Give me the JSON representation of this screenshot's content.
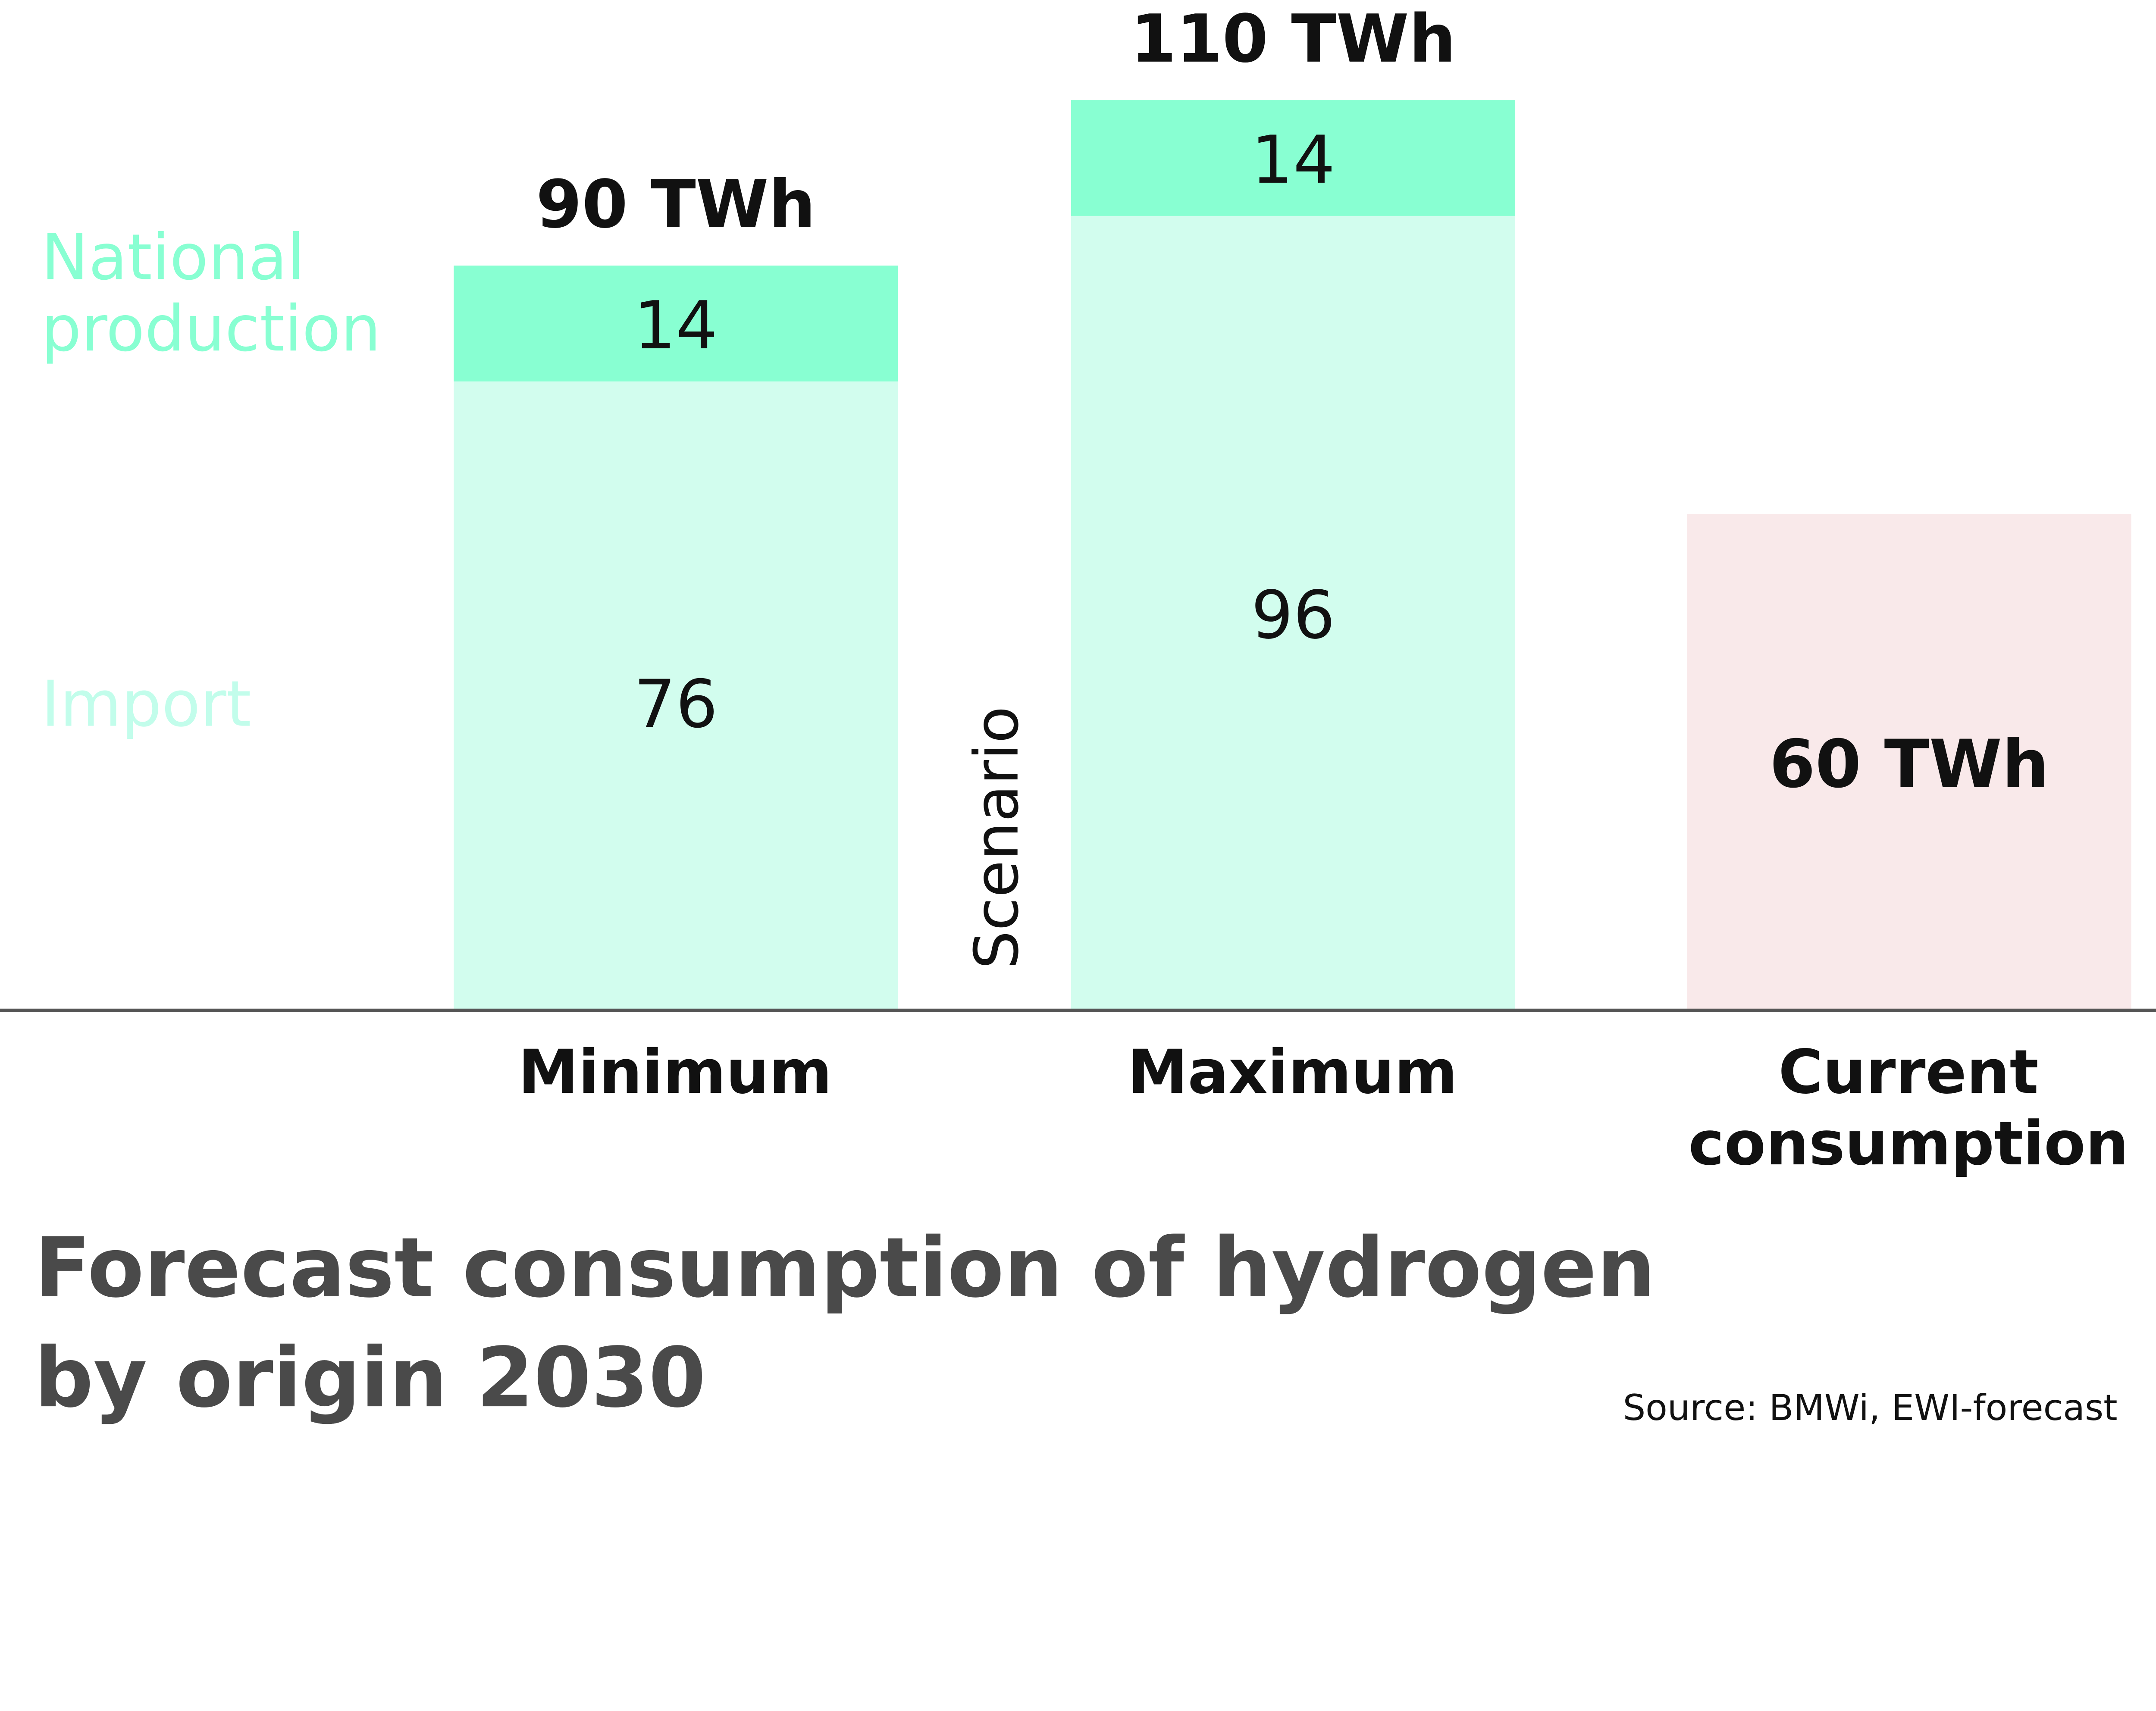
{
  "chart_data": {
    "type": "bar",
    "stacked": true,
    "title": "Forecast consumption of hydrogen by origin 2030",
    "title_lines": [
      "Forecast consumption of hydrogen",
      "by origin 2030"
    ],
    "source": "Source: BMWi, EWI-forecast",
    "group_label": "Scenario",
    "categories": [
      "Minimum",
      "Maximum",
      "Current consumption"
    ],
    "category_lines": [
      [
        "Minimum"
      ],
      [
        "Maximum"
      ],
      [
        "Current",
        "consumption"
      ]
    ],
    "series": [
      {
        "name": "Import",
        "values": [
          76,
          96,
          null
        ],
        "labels": [
          "76",
          "96",
          ""
        ],
        "color": "#D2FDEE"
      },
      {
        "name": "National production",
        "values": [
          14,
          14,
          null
        ],
        "labels": [
          "14",
          "14",
          ""
        ],
        "color": "#88FFD2"
      },
      {
        "name": "Current consumption",
        "values": [
          null,
          null,
          60
        ],
        "labels": [
          "",
          "",
          "60 TWh"
        ],
        "color": "#F9E9EA"
      }
    ],
    "legend_lines": {
      "national": [
        "National",
        "production"
      ],
      "import": [
        "Import"
      ]
    },
    "legend_colors": {
      "national": "#88FFD2",
      "import": "#C2FDEB"
    },
    "totals": [
      "90 TWh",
      "110 TWh",
      ""
    ],
    "unit": "TWh",
    "ylim": [
      0,
      120
    ],
    "grid": false,
    "legend_placement": "left",
    "axis_color": "#555555",
    "title_color": "#4A4A4A"
  }
}
